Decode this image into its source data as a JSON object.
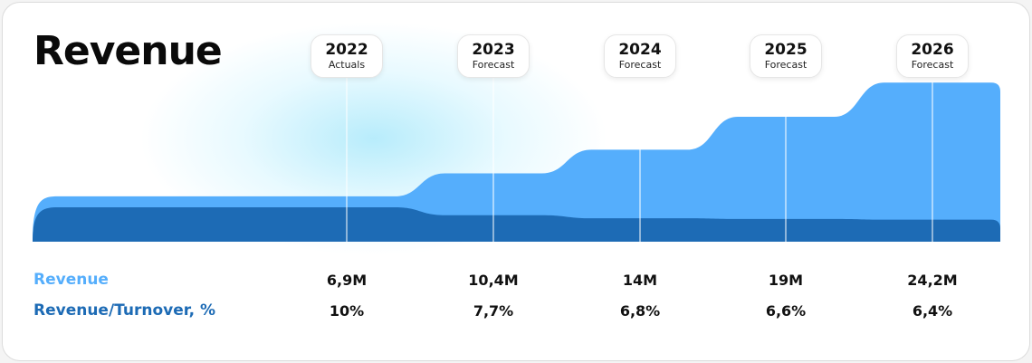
{
  "title": "Revenue",
  "colors": {
    "revenue": "#55aefc",
    "ratio": "#1d6bb5",
    "text": "#111111"
  },
  "chart_data": {
    "type": "area",
    "title": "Revenue",
    "x": [
      "2022",
      "2023",
      "2024",
      "2025",
      "2026"
    ],
    "x_sublabels": [
      "Actuals",
      "Forecast",
      "Forecast",
      "Forecast",
      "Forecast"
    ],
    "series": [
      {
        "name": "Revenue",
        "values": [
          6.9,
          10.4,
          14,
          19,
          24.2
        ],
        "labels": [
          "6,9M",
          "10,4M",
          "14M",
          "19M",
          "24,2M"
        ],
        "color": "#55aefc"
      },
      {
        "name": "Revenue/Turnover, %",
        "values": [
          10,
          7.7,
          6.8,
          6.6,
          6.4
        ],
        "labels": [
          "10%",
          "7,7%",
          "6,8%",
          "6,6%",
          "6,4%"
        ],
        "color": "#1d6bb5"
      }
    ],
    "ylim": [
      0,
      25
    ],
    "ratio_ylim": [
      0,
      13
    ],
    "grid": false,
    "legend": "bottom-left"
  }
}
